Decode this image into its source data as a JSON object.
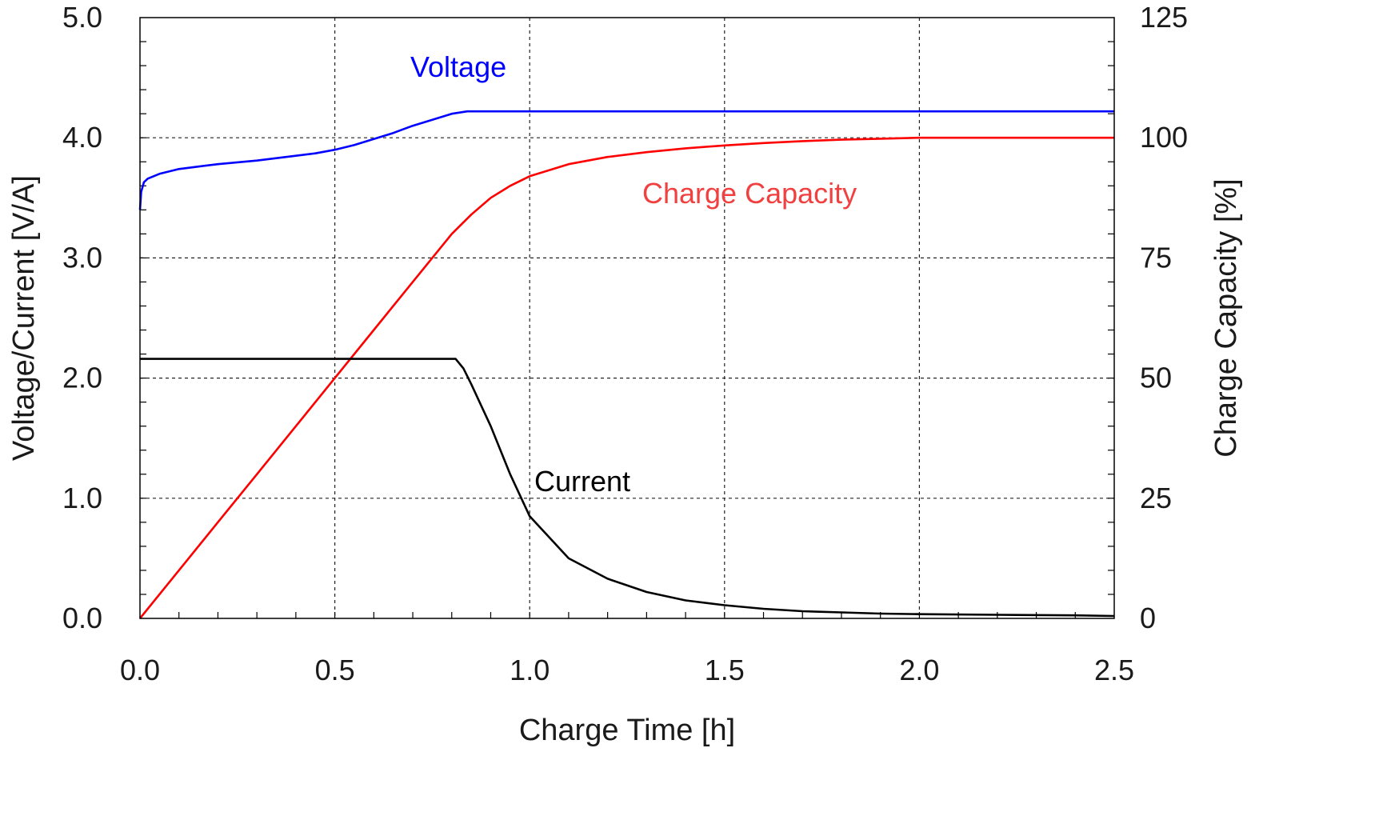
{
  "chart_data": {
    "type": "line",
    "xlabel": "Charge Time [h]",
    "ylabel_left": "Voltage/Current [V/A]",
    "ylabel_right": "Charge Capacity [%]",
    "xlim": [
      0,
      2.5
    ],
    "ylim_left": [
      0,
      5
    ],
    "ylim_right": [
      0,
      125
    ],
    "grid": true,
    "x_ticks": [
      "0.0",
      "0.5",
      "1.0",
      "1.5",
      "2.0",
      "2.5"
    ],
    "y_left_ticks": [
      "0.0",
      "1.0",
      "2.0",
      "3.0",
      "4.0",
      "5.0"
    ],
    "y_right_ticks": [
      "0",
      "25",
      "50",
      "75",
      "100",
      "125"
    ],
    "series": [
      {
        "name": "Voltage",
        "axis": "left",
        "color": "#0000ff",
        "label_color": "#0000ff",
        "x": [
          0,
          0.003,
          0.01,
          0.02,
          0.05,
          0.1,
          0.15,
          0.2,
          0.3,
          0.4,
          0.45,
          0.5,
          0.55,
          0.6,
          0.65,
          0.7,
          0.75,
          0.8,
          0.84,
          1.0,
          1.5,
          2.0,
          2.5
        ],
        "y": [
          3.4,
          3.55,
          3.63,
          3.66,
          3.7,
          3.74,
          3.76,
          3.78,
          3.81,
          3.85,
          3.87,
          3.9,
          3.94,
          3.99,
          4.04,
          4.1,
          4.15,
          4.2,
          4.22,
          4.22,
          4.22,
          4.22,
          4.22
        ]
      },
      {
        "name": "Charge Capacity",
        "axis": "right",
        "color": "#ff0000",
        "label_color": "#f04040",
        "x": [
          0,
          0.1,
          0.2,
          0.3,
          0.4,
          0.5,
          0.6,
          0.7,
          0.8,
          0.85,
          0.9,
          0.95,
          1.0,
          1.1,
          1.2,
          1.3,
          1.4,
          1.5,
          1.6,
          1.7,
          1.8,
          1.9,
          2.0,
          2.2,
          2.5
        ],
        "y": [
          0,
          10,
          20,
          30,
          40,
          50,
          60,
          70,
          80,
          84,
          87.5,
          90,
          92,
          94.5,
          96,
          97,
          97.8,
          98.4,
          98.9,
          99.3,
          99.6,
          99.8,
          100,
          100,
          100
        ]
      },
      {
        "name": "Current",
        "axis": "left",
        "color": "#000000",
        "label_color": "#000000",
        "x": [
          0,
          0.5,
          0.81,
          0.83,
          0.85,
          0.9,
          0.95,
          1.0,
          1.1,
          1.2,
          1.3,
          1.4,
          1.5,
          1.6,
          1.7,
          1.8,
          1.9,
          2.0,
          2.2,
          2.4,
          2.5
        ],
        "y": [
          2.16,
          2.16,
          2.16,
          2.08,
          1.95,
          1.6,
          1.2,
          0.85,
          0.5,
          0.33,
          0.22,
          0.15,
          0.11,
          0.08,
          0.06,
          0.05,
          0.04,
          0.035,
          0.03,
          0.025,
          0.02
        ]
      }
    ],
    "annotations": {
      "voltage": "Voltage",
      "capacity": "Charge Capacity",
      "current": "Current"
    }
  }
}
